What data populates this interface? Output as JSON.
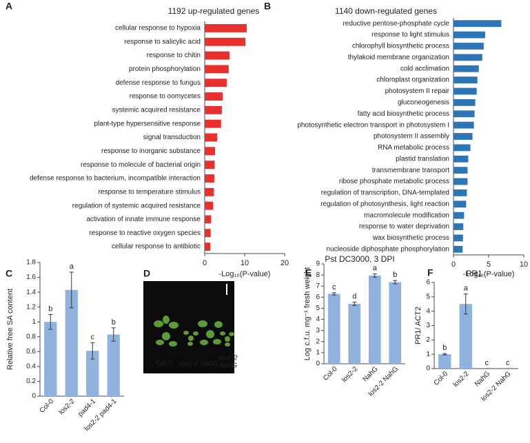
{
  "chart_data": [
    {
      "type": "hbar",
      "label": "A",
      "title": "1192 up-regulated genes",
      "xlabel": "-Log₁₀(P-value)",
      "color": "#e8312f",
      "categories": [
        "cellular response to hypoxia",
        "response to salicylic acid",
        "response to chitin",
        "protein phosphorylation",
        "defense response to fungus",
        "response to oomycetes",
        "systemic acquired resistance",
        "plant-type hypersensitive response",
        "signal transduction",
        "response to inorganic substance",
        "response to molecule of bacterial origin",
        "defense response to bacterium, incompatible interaction",
        "response to temperature stimulus",
        "regulation of systemic acquired resistance",
        "activation of innate immune response",
        "response to reactive oxygen species",
        "cellular response to antibiotic"
      ],
      "values": [
        10.5,
        10.2,
        6.2,
        6.0,
        5.5,
        4.5,
        4.3,
        4.1,
        3.1,
        2.6,
        2.5,
        2.4,
        2.3,
        2.1,
        1.6,
        1.5,
        1.4
      ],
      "xlim": [
        0,
        20
      ],
      "xticks": [
        0,
        10,
        20
      ]
    },
    {
      "type": "hbar",
      "label": "B",
      "title": "1140 down-regulated genes",
      "xlabel": "-Log₁₀(P-value)",
      "color": "#2e75b6",
      "categories": [
        "reductive pentose-phosphate cycle",
        "response to light stimulus",
        "chlorophyll biosynthetic process",
        "thylakoid membrane organization",
        "cold acclimation",
        "chloroplast organization",
        "photosystem II repair",
        "gluconeogenesis",
        "fatty acid biosynthetic process",
        "photosynthetic electron transport in photosystem I",
        "photosystem II assembly",
        "RNA metabolic process",
        "plastid translation",
        "transmembrane transport",
        "ribose phosphate metabolic process",
        "regulation of transcription, DNA-templated",
        "regulation of photosynthesis, light reaction",
        "macromolecule modification",
        "response to water deprivation",
        "wax biosynthetic process",
        "nucleoside diphosphate phosphorylation"
      ],
      "values": [
        6.8,
        4.5,
        4.3,
        4.1,
        3.6,
        3.4,
        3.3,
        3.1,
        3.0,
        2.9,
        2.7,
        2.4,
        2.1,
        2.0,
        2.0,
        1.9,
        1.8,
        1.5,
        1.4,
        1.35,
        1.3
      ],
      "xlim": [
        0,
        10
      ],
      "xticks": [
        0,
        5,
        10
      ]
    },
    {
      "type": "bar",
      "label": "C",
      "ylabel": "Relative free SA content",
      "color": "#8fb3de",
      "categories": [
        "Col-0",
        "los2-2",
        "pad4-1",
        "los2-2 pad4-1"
      ],
      "values": [
        1.0,
        1.43,
        0.61,
        0.83
      ],
      "errors": [
        0.1,
        0.24,
        0.11,
        0.09
      ],
      "annotations": [
        "b",
        "a",
        "c",
        "b"
      ],
      "ylim": [
        0,
        1.8
      ],
      "yticks": [
        0,
        0.2,
        0.4,
        0.6,
        0.8,
        1,
        1.2,
        1.4,
        1.6,
        1.8
      ]
    },
    {
      "type": "bar",
      "label": "E",
      "title": "Pst DC3000, 3 DPI",
      "ylabel": "Log c.f.u. mg⁻¹ fresh weight",
      "color": "#8fb3de",
      "categories": [
        "Col-0",
        "los2-2",
        "NahG",
        "los2-2 NahG"
      ],
      "values": [
        6.3,
        5.4,
        7.95,
        7.35
      ],
      "errors": [
        0.1,
        0.15,
        0.15,
        0.15
      ],
      "annotations": [
        "c",
        "d",
        "a",
        "b"
      ],
      "ylim": [
        0,
        9
      ],
      "yticks": [
        0,
        1,
        2,
        3,
        4,
        5,
        6,
        7,
        8,
        9
      ]
    },
    {
      "type": "bar",
      "label": "F",
      "title": "PR1",
      "ylabel": "PR1/ ACT2",
      "color": "#8fb3de",
      "categories": [
        "Col-0",
        "los2-2",
        "NahG",
        "los2-2 NahG"
      ],
      "values": [
        1.0,
        4.5,
        0,
        0
      ],
      "errors": [
        0.05,
        0.7,
        0,
        0
      ],
      "annotations": [
        "b",
        "a",
        "c",
        "c"
      ],
      "ylim": [
        0,
        6
      ],
      "yticks": [
        0,
        1,
        2,
        3,
        4,
        5,
        6
      ]
    }
  ],
  "photo": {
    "label": "D",
    "captions": [
      "Col-0",
      "los2-2",
      "NahG"
    ],
    "caption_stacked": [
      "los2-2",
      "NahG"
    ]
  }
}
